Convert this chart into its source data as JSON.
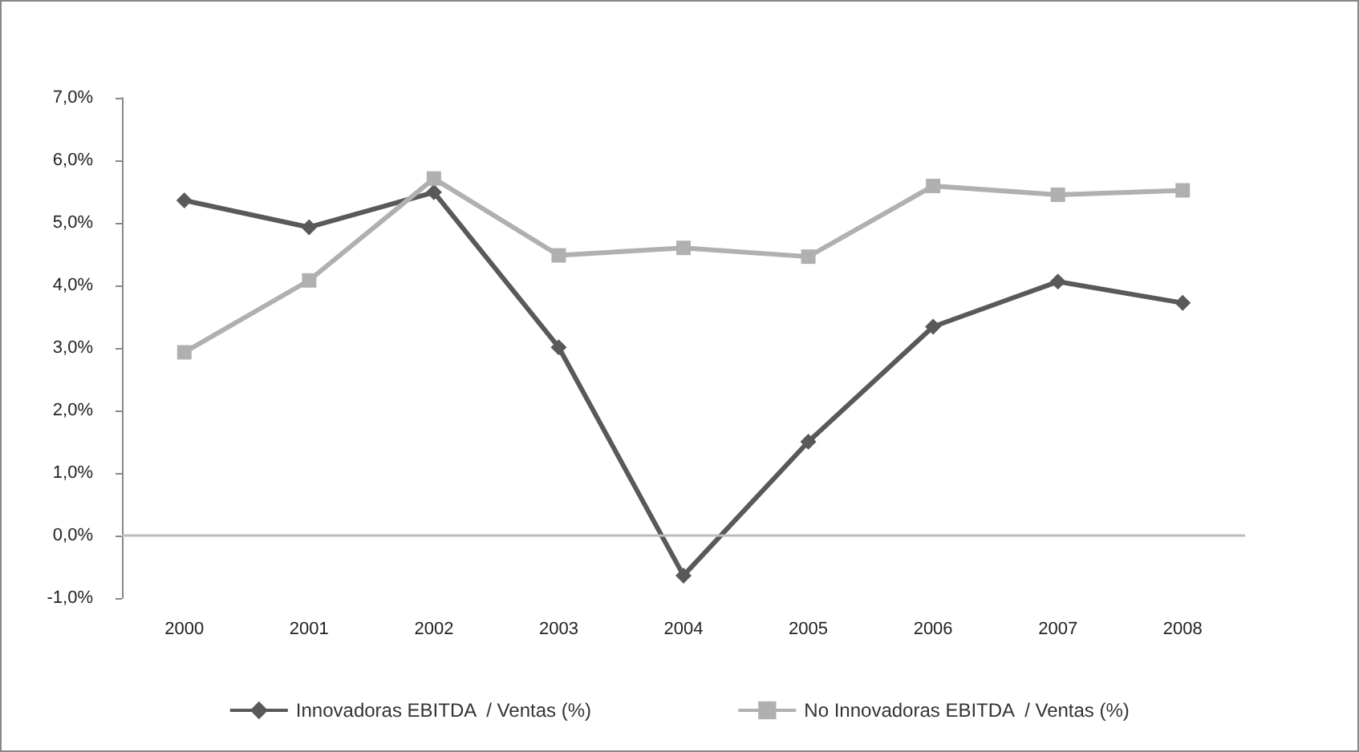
{
  "chart_data": {
    "type": "line",
    "categories": [
      "2000",
      "2001",
      "2002",
      "2003",
      "2004",
      "2005",
      "2006",
      "2007",
      "2008"
    ],
    "series": [
      {
        "name": "Innovadoras EBITDA  / Ventas (%)",
        "color": "#595959",
        "marker": "diamond",
        "values": [
          5.36,
          4.93,
          5.49,
          3.01,
          -0.64,
          1.5,
          3.34,
          4.06,
          3.72
        ]
      },
      {
        "name": "No Innovadoras EBITDA  / Ventas (%)",
        "color": "#b0b0b0",
        "marker": "square",
        "values": [
          2.93,
          4.08,
          5.71,
          4.48,
          4.6,
          4.46,
          5.59,
          5.45,
          5.52
        ]
      }
    ],
    "ylim": [
      -1,
      7
    ],
    "yticks": [
      {
        "value": -1,
        "label": "-1,0%"
      },
      {
        "value": 0,
        "label": "0,0%"
      },
      {
        "value": 1,
        "label": "1,0%"
      },
      {
        "value": 2,
        "label": "2,0%"
      },
      {
        "value": 3,
        "label": "3,0%"
      },
      {
        "value": 4,
        "label": "4,0%"
      },
      {
        "value": 5,
        "label": "5,0%"
      },
      {
        "value": 6,
        "label": "6,0%"
      },
      {
        "value": 7,
        "label": "7,0%"
      }
    ],
    "ref_lines": [
      {
        "axis": "y",
        "value": 0,
        "color": "#bbbbbb"
      }
    ],
    "grid": false,
    "legend": "bottom"
  }
}
